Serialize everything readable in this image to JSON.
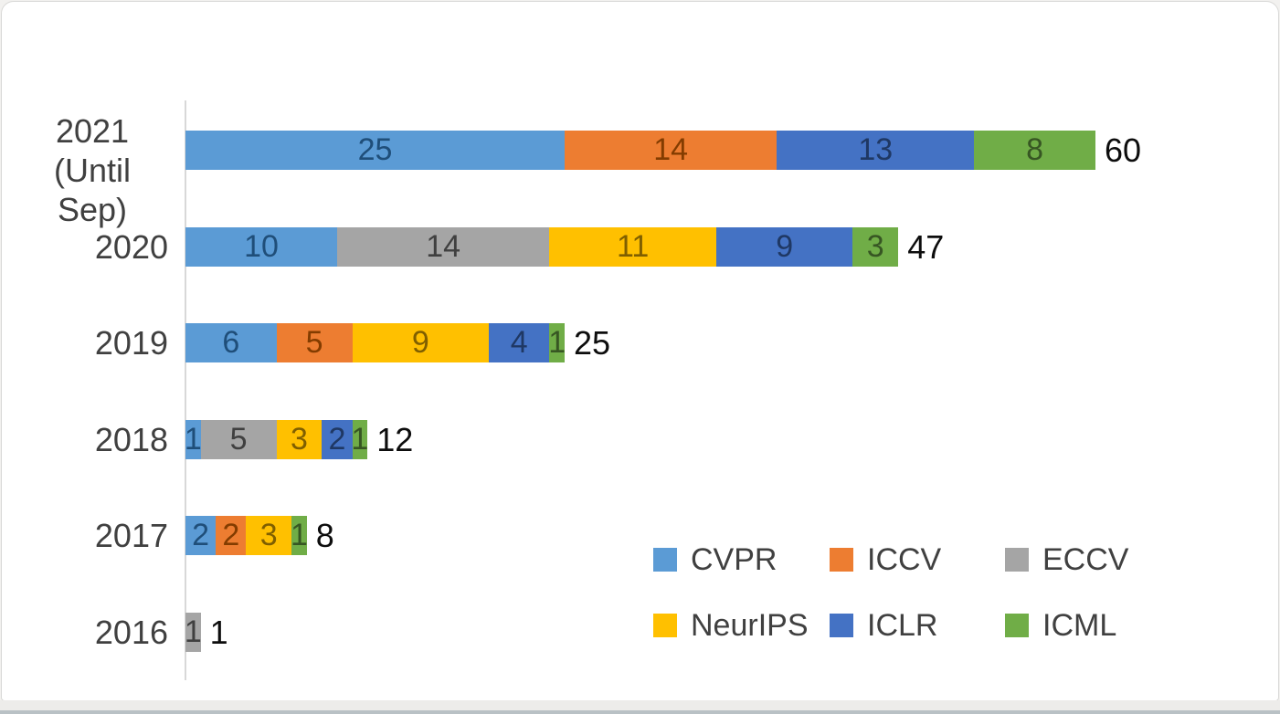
{
  "chart_data": {
    "type": "bar",
    "orientation": "horizontal",
    "stacked": true,
    "title": "",
    "xlabel": "",
    "ylabel": "",
    "categories": [
      "2021 (Until Sep)",
      "2020",
      "2019",
      "2018",
      "2017",
      "2016"
    ],
    "category_lines": [
      [
        "2021",
        "(Until Sep)"
      ],
      [
        "2020"
      ],
      [
        "2019"
      ],
      [
        "2018"
      ],
      [
        "2017"
      ],
      [
        "2016"
      ]
    ],
    "series": [
      {
        "name": "CVPR",
        "color": "#5B9BD5",
        "label_color": "#1F4E79",
        "values": [
          25,
          10,
          6,
          1,
          2,
          0
        ]
      },
      {
        "name": "ICCV",
        "color": "#ED7D31",
        "label_color": "#833C00",
        "values": [
          14,
          0,
          5,
          0,
          2,
          0
        ]
      },
      {
        "name": "ECCV",
        "color": "#A5A5A5",
        "label_color": "#404040",
        "values": [
          0,
          14,
          0,
          5,
          0,
          1
        ]
      },
      {
        "name": "NeurIPS",
        "color": "#FFC000",
        "label_color": "#7F5F00",
        "values": [
          0,
          11,
          9,
          3,
          3,
          0
        ]
      },
      {
        "name": "ICLR",
        "color": "#4472C4",
        "label_color": "#1F3864",
        "values": [
          13,
          9,
          4,
          2,
          0,
          0
        ]
      },
      {
        "name": "ICML",
        "color": "#70AD47",
        "label_color": "#375623",
        "values": [
          8,
          3,
          1,
          1,
          1,
          0
        ]
      }
    ],
    "totals": [
      60,
      47,
      25,
      12,
      8,
      1
    ],
    "xlim": [
      0,
      72
    ],
    "gridlines": false,
    "axis_color": "#D8D8D8",
    "legend_position": "inside-bottom-right",
    "legend_rows": [
      [
        "CVPR",
        "ICCV",
        "ECCV"
      ],
      [
        "NeurIPS",
        "ICLR",
        "ICML"
      ]
    ]
  }
}
